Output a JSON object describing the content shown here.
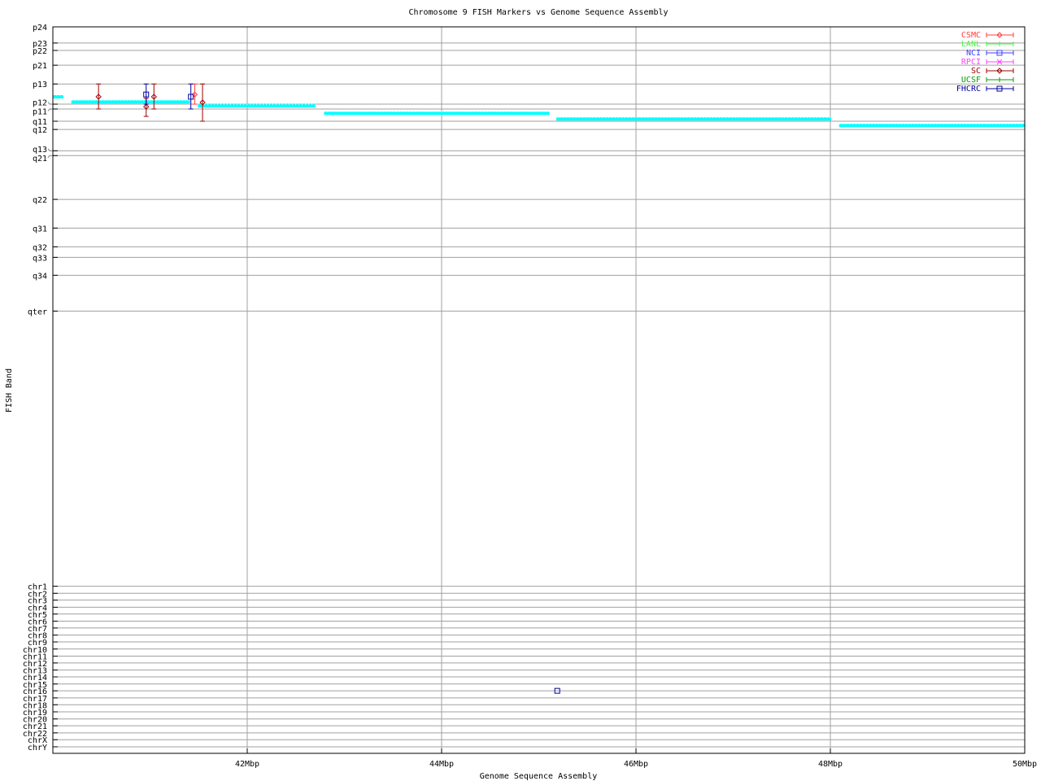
{
  "chart_data": {
    "type": "scatter",
    "title": "Chromosome 9 FISH Markers vs Genome Sequence Assembly",
    "xlabel": "Genome Sequence Assembly",
    "ylabel": "FISH Band",
    "xlim": [
      40,
      50
    ],
    "ylim": [
      0,
      255.6
    ],
    "y_reversed": true,
    "grid": true,
    "legend_position": "top-right",
    "x_ticks": [
      {
        "value": 42,
        "label": "42Mbp"
      },
      {
        "value": 44,
        "label": "44Mbp"
      },
      {
        "value": 46,
        "label": "46Mbp"
      },
      {
        "value": 48,
        "label": "48Mbp"
      },
      {
        "value": 50,
        "label": "50Mbp"
      }
    ],
    "y_ticks": [
      {
        "value": 0,
        "label": "p24"
      },
      {
        "value": 5.7,
        "label": "p23"
      },
      {
        "value": 8.3,
        "label": "p22"
      },
      {
        "value": 13.5,
        "label": "p21"
      },
      {
        "value": 20.1,
        "label": "p13"
      },
      {
        "value": 27.2,
        "label": "p12"
      },
      {
        "value": 28.9,
        "label": "p11"
      },
      {
        "value": 33.2,
        "label": "q11"
      },
      {
        "value": 36.1,
        "label": "q12"
      },
      {
        "value": 43.6,
        "label": "q13"
      },
      {
        "value": 45.3,
        "label": "q21"
      },
      {
        "value": 60.7,
        "label": "q22"
      },
      {
        "value": 70.8,
        "label": "q31"
      },
      {
        "value": 77.4,
        "label": "q32"
      },
      {
        "value": 81.1,
        "label": "q33"
      },
      {
        "value": 87.4,
        "label": "q34"
      },
      {
        "value": 100,
        "label": "qter"
      },
      {
        "value": 196.8,
        "label": "chr1"
      },
      {
        "value": 199.3,
        "label": "chr2"
      },
      {
        "value": 201.7,
        "label": "chr3"
      },
      {
        "value": 204.2,
        "label": "chr4"
      },
      {
        "value": 206.6,
        "label": "chr5"
      },
      {
        "value": 209.1,
        "label": "chr6"
      },
      {
        "value": 211.5,
        "label": "chr7"
      },
      {
        "value": 214.0,
        "label": "chr8"
      },
      {
        "value": 216.4,
        "label": "chr9"
      },
      {
        "value": 218.9,
        "label": "chr10"
      },
      {
        "value": 221.4,
        "label": "chr11"
      },
      {
        "value": 223.8,
        "label": "chr12"
      },
      {
        "value": 226.3,
        "label": "chr13"
      },
      {
        "value": 228.7,
        "label": "chr14"
      },
      {
        "value": 231.2,
        "label": "chr15"
      },
      {
        "value": 233.6,
        "label": "chr16"
      },
      {
        "value": 236.1,
        "label": "chr17"
      },
      {
        "value": 238.5,
        "label": "chr18"
      },
      {
        "value": 241.0,
        "label": "chr19"
      },
      {
        "value": 243.5,
        "label": "chr20"
      },
      {
        "value": 245.9,
        "label": "chr21"
      },
      {
        "value": 248.4,
        "label": "chr22"
      },
      {
        "value": 250.8,
        "label": "chrX"
      },
      {
        "value": 253.3,
        "label": "chrY"
      }
    ],
    "assembly_segments": {
      "color": "#00ffff",
      "segments": [
        {
          "x0": 40.0,
          "x1": 40.11,
          "y": 24.6
        },
        {
          "x0": 40.19,
          "x1": 41.41,
          "y": 26.4
        },
        {
          "x0": 41.49,
          "x1": 42.7,
          "y": 27.8
        },
        {
          "x0": 42.79,
          "x1": 45.11,
          "y": 30.4
        },
        {
          "x0": 45.18,
          "x1": 48.01,
          "y": 32.4
        },
        {
          "x0": 48.09,
          "x1": 50.0,
          "y": 34.7
        }
      ]
    },
    "series": [
      {
        "name": "CSMC",
        "color": "#ff4040",
        "marker": "diamond",
        "points": [
          {
            "x": 41.46,
            "y": 23.8,
            "ylow": 20.1,
            "yhigh": 27.2
          }
        ]
      },
      {
        "name": "LANL",
        "color": "#40ff40",
        "marker": "plus",
        "points": []
      },
      {
        "name": "NCI",
        "color": "#4040ff",
        "marker": "square",
        "points": []
      },
      {
        "name": "RPCI",
        "color": "#ff40ff",
        "marker": "cross",
        "points": []
      },
      {
        "name": "SC",
        "color": "#a00000",
        "marker": "diamond",
        "points": [
          {
            "x": 40.47,
            "y": 24.6,
            "ylow": 20.1,
            "yhigh": 28.9
          },
          {
            "x": 40.96,
            "y": 28.1,
            "ylow": 25.2,
            "yhigh": 31.5
          },
          {
            "x": 41.04,
            "y": 24.6,
            "ylow": 20.1,
            "yhigh": 28.9
          },
          {
            "x": 41.54,
            "y": 26.6,
            "ylow": 20.1,
            "yhigh": 33.2
          }
        ]
      },
      {
        "name": "UCSF",
        "color": "#00a000",
        "marker": "plus",
        "points": []
      },
      {
        "name": "FHCRC",
        "color": "#0000a0",
        "marker": "square",
        "points": [
          {
            "x": 40.96,
            "y": 23.8,
            "ylow": 20.1,
            "yhigh": 27.2
          },
          {
            "x": 41.42,
            "y": 24.6,
            "ylow": 20.1,
            "yhigh": 28.9
          },
          {
            "x": 45.19,
            "y": 233.6
          }
        ]
      }
    ]
  }
}
